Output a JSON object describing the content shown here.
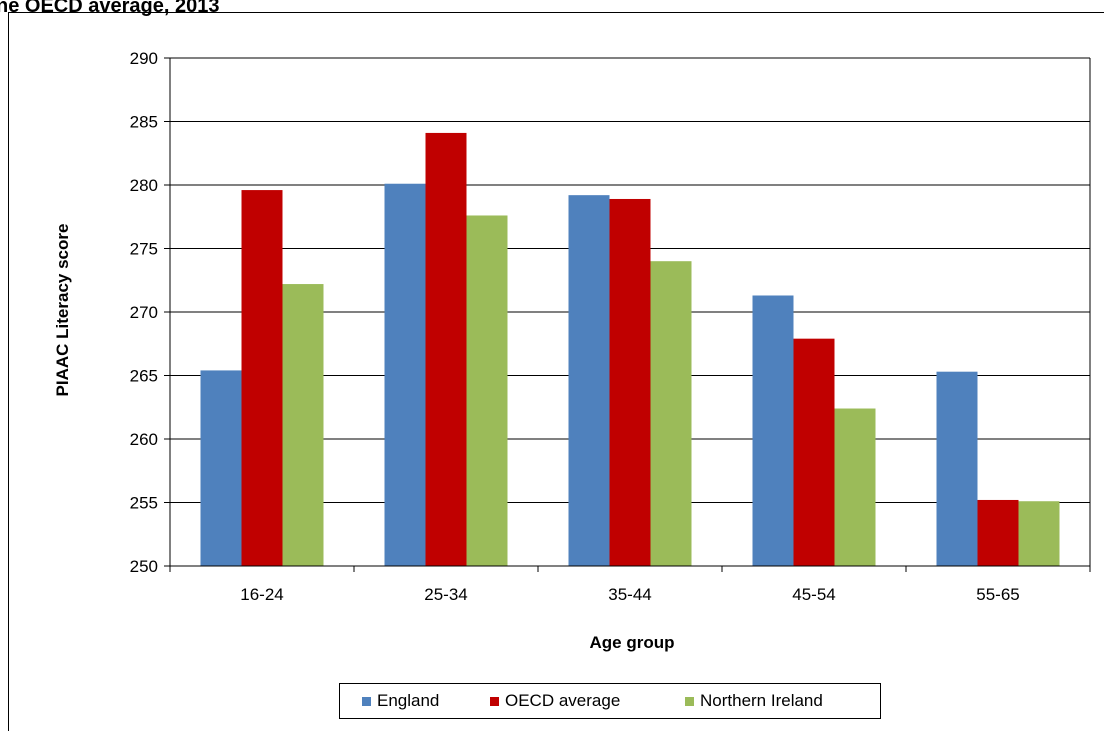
{
  "chart_data": {
    "type": "bar",
    "title": "ne OECD average, 2013",
    "xlabel": "Age group",
    "ylabel": "PIAAC Literacy score",
    "ylim": [
      250,
      290
    ],
    "yticks": [
      250,
      255,
      260,
      265,
      270,
      275,
      280,
      285,
      290
    ],
    "grid": true,
    "legend_position": "bottom",
    "categories": [
      "16-24",
      "25-34",
      "35-44",
      "45-54",
      "55-65"
    ],
    "series": [
      {
        "name": "England",
        "color": "#4f81bd",
        "values": [
          265.4,
          280.1,
          279.2,
          271.3,
          265.3
        ]
      },
      {
        "name": "OECD average",
        "color": "#c00000",
        "values": [
          279.6,
          284.1,
          278.9,
          267.9,
          255.2
        ]
      },
      {
        "name": "Northern Ireland",
        "color": "#9bbb59",
        "values": [
          272.2,
          277.6,
          274.0,
          262.4,
          255.1
        ]
      }
    ]
  }
}
